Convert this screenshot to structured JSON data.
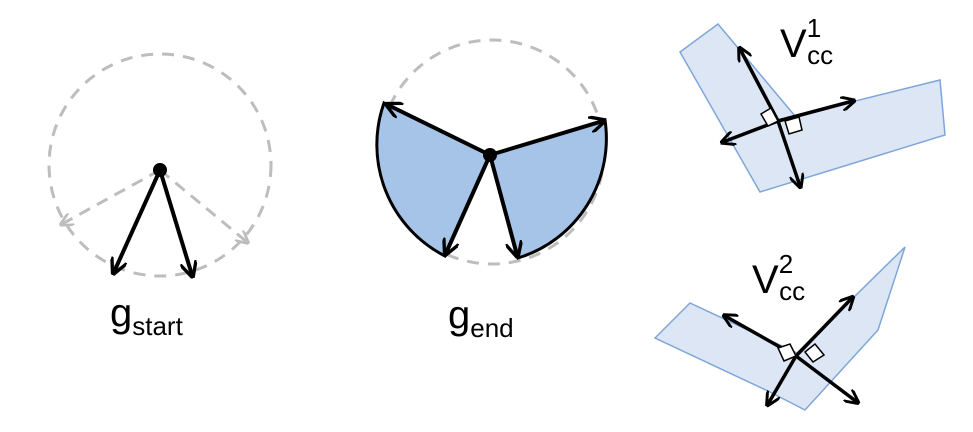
{
  "panels": {
    "start": {
      "symbol": "g",
      "subscript": "start"
    },
    "end": {
      "symbol": "g",
      "subscript": "end"
    },
    "cc1": {
      "symbol": "V",
      "superscript": "1",
      "subscript": "cc"
    },
    "cc2": {
      "symbol": "V",
      "superscript": "2",
      "subscript": "cc"
    }
  },
  "colors": {
    "dashed_circle": "#bdbdbd",
    "arrow": "#000000",
    "sector_fill": "#a6c4e8",
    "shape_fill": "#dde6f4",
    "shape_stroke": "#7ea6d8",
    "faded_arrow": "#bdbdbd"
  }
}
